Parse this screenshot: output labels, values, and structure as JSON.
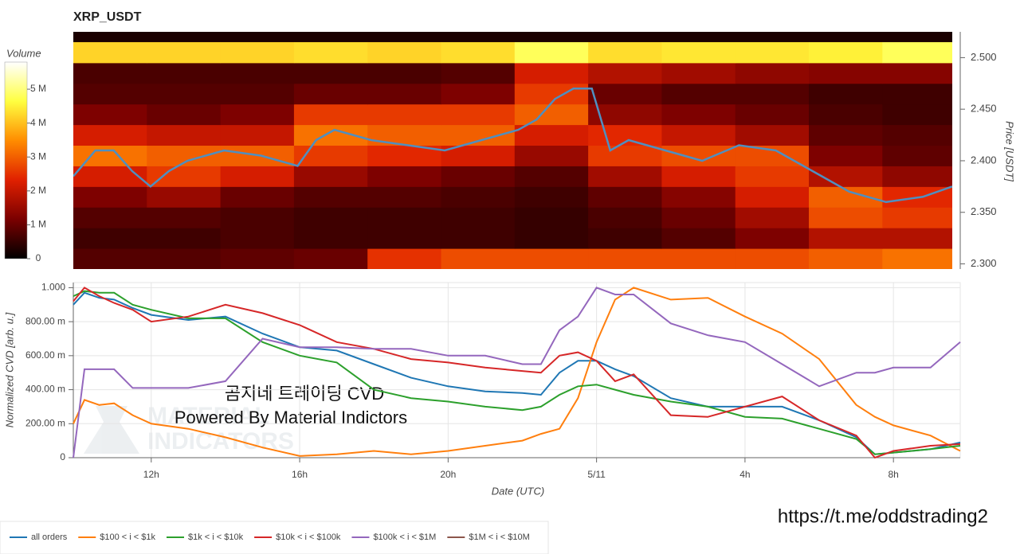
{
  "chart_data": [
    {
      "type": "heatmap",
      "title": "XRP_USDT",
      "colorbar_title": "Volume",
      "ylabel": "Price [USDT]",
      "xlim": [
        9.9,
        33.8
      ],
      "ylim": [
        2.295,
        2.525
      ],
      "yticks": [
        {
          "value": 2.3,
          "label": "2.300"
        },
        {
          "value": 2.35,
          "label": "2.350"
        },
        {
          "value": 2.4,
          "label": "2.400"
        },
        {
          "value": 2.45,
          "label": "2.450"
        },
        {
          "value": 2.5,
          "label": "2.500"
        }
      ],
      "zlim": [
        0,
        5800000
      ],
      "zticks": [
        0,
        {
          "value": 1000000,
          "label": "1 M"
        },
        {
          "value": 2000000,
          "label": "2 M"
        },
        {
          "value": 3000000,
          "label": "3 M"
        },
        {
          "value": 4000000,
          "label": "4 M"
        },
        {
          "value": 5000000,
          "label": "5 M"
        }
      ],
      "colorscale": [
        "#000000",
        "#7a0000",
        "#e02000",
        "#ff8c00",
        "#ffff40",
        "#ffffff"
      ],
      "time_bins": [
        9.9,
        11.9,
        13.9,
        15.9,
        17.9,
        19.9,
        21.9,
        23.9,
        25.9,
        27.9,
        29.9,
        31.9,
        33.8
      ],
      "price_bins": [
        2.295,
        2.315,
        2.335,
        2.355,
        2.375,
        2.395,
        2.415,
        2.435,
        2.455,
        2.475,
        2.495,
        2.515
      ],
      "z": [
        [
          800000,
          800000,
          900000,
          1000000,
          2500000,
          2800000,
          2800000,
          2800000,
          2800000,
          2800000,
          3000000,
          3200000
        ],
        [
          600000,
          600000,
          700000,
          600000,
          600000,
          600000,
          500000,
          600000,
          800000,
          1200000,
          1800000,
          1800000
        ],
        [
          800000,
          800000,
          700000,
          600000,
          600000,
          600000,
          500000,
          700000,
          1000000,
          1600000,
          2800000,
          2600000
        ],
        [
          1200000,
          1500000,
          1000000,
          800000,
          800000,
          700000,
          600000,
          900000,
          1300000,
          2200000,
          3000000,
          2400000
        ],
        [
          2200000,
          2600000,
          2200000,
          1500000,
          1200000,
          1000000,
          800000,
          1600000,
          2200000,
          2600000,
          1800000,
          1400000
        ],
        [
          3200000,
          3000000,
          3000000,
          2600000,
          2400000,
          2200000,
          1500000,
          2600000,
          2800000,
          2800000,
          1200000,
          900000
        ],
        [
          2200000,
          2000000,
          2000000,
          3200000,
          3000000,
          3000000,
          2200000,
          2400000,
          2000000,
          1600000,
          900000,
          800000
        ],
        [
          1200000,
          1000000,
          1200000,
          2600000,
          2600000,
          2600000,
          3000000,
          1400000,
          1200000,
          1000000,
          700000,
          600000
        ],
        [
          800000,
          800000,
          800000,
          1000000,
          1000000,
          1200000,
          2600000,
          1000000,
          800000,
          800000,
          600000,
          600000
        ],
        [
          700000,
          700000,
          700000,
          700000,
          700000,
          800000,
          2200000,
          1800000,
          1600000,
          1400000,
          1300000,
          1300000
        ],
        [
          4200000,
          4200000,
          4200000,
          4300000,
          4200000,
          4300000,
          4800000,
          4300000,
          4400000,
          4400000,
          4500000,
          4800000
        ]
      ],
      "line": {
        "color": "#4f8fc0",
        "x": [
          9.9,
          10.5,
          11,
          11.5,
          12,
          12.5,
          13,
          14,
          15,
          16,
          16.5,
          17,
          18,
          19,
          20,
          21,
          22,
          22.5,
          23,
          23.5,
          24,
          24.5,
          25,
          26,
          27,
          28,
          29,
          30,
          31,
          32,
          33,
          33.8
        ],
        "values": [
          2.385,
          2.41,
          2.41,
          2.39,
          2.375,
          2.39,
          2.4,
          2.41,
          2.405,
          2.395,
          2.42,
          2.43,
          2.42,
          2.415,
          2.41,
          2.42,
          2.43,
          2.44,
          2.46,
          2.47,
          2.47,
          2.41,
          2.42,
          2.41,
          2.4,
          2.415,
          2.41,
          2.39,
          2.37,
          2.36,
          2.365,
          2.375
        ]
      }
    },
    {
      "type": "line",
      "ylabel": "Normalized CVD [arb. u.]",
      "xlabel": "Date (UTC)",
      "xlim": [
        9.9,
        33.8
      ],
      "ylim": [
        0,
        1.03
      ],
      "xticks": [
        {
          "value": 12,
          "label": "12h"
        },
        {
          "value": 16,
          "label": "16h"
        },
        {
          "value": 20,
          "label": "20h"
        },
        {
          "value": 24,
          "label": "5/11"
        },
        {
          "value": 28,
          "label": "4h"
        },
        {
          "value": 32,
          "label": "8h"
        }
      ],
      "yticks": [
        0,
        {
          "value": 0.2,
          "label": "200.00 m"
        },
        {
          "value": 0.4,
          "label": "400.00 m"
        },
        {
          "value": 0.6,
          "label": "600.00 m"
        },
        {
          "value": 0.8,
          "label": "800.00 m"
        },
        {
          "value": 1,
          "label": "1.000"
        }
      ],
      "grid": true,
      "x": [
        9.9,
        10.2,
        10.6,
        11,
        11.5,
        12,
        13,
        14,
        15,
        16,
        17,
        18,
        19,
        20,
        21,
        22,
        22.5,
        23,
        23.5,
        24,
        24.5,
        25,
        26,
        27,
        28,
        29,
        30,
        31,
        31.5,
        32,
        33,
        33.8
      ],
      "series": [
        {
          "name": "all orders",
          "color": "#1f77b4",
          "values": [
            0.9,
            0.97,
            0.94,
            0.93,
            0.88,
            0.84,
            0.81,
            0.83,
            0.73,
            0.65,
            0.63,
            0.55,
            0.47,
            0.42,
            0.39,
            0.38,
            0.37,
            0.5,
            0.57,
            0.57,
            0.52,
            0.48,
            0.35,
            0.3,
            0.3,
            0.3,
            0.22,
            0.12,
            0.02,
            0.03,
            0.05,
            0.09
          ]
        },
        {
          "name": "$100 < i < $1k",
          "color": "#ff7f0e",
          "values": [
            0.2,
            0.34,
            0.31,
            0.32,
            0.25,
            0.2,
            0.17,
            0.12,
            0.06,
            0.01,
            0.02,
            0.04,
            0.02,
            0.04,
            0.07,
            0.1,
            0.14,
            0.17,
            0.35,
            0.68,
            0.93,
            1.0,
            0.93,
            0.94,
            0.83,
            0.73,
            0.58,
            0.31,
            0.24,
            0.19,
            0.13,
            0.04
          ]
        },
        {
          "name": "$1k < i < $10k",
          "color": "#2ca02c",
          "values": [
            0.95,
            0.98,
            0.97,
            0.97,
            0.9,
            0.87,
            0.82,
            0.82,
            0.68,
            0.6,
            0.56,
            0.4,
            0.35,
            0.33,
            0.3,
            0.28,
            0.3,
            0.37,
            0.42,
            0.43,
            0.4,
            0.37,
            0.33,
            0.3,
            0.24,
            0.23,
            0.17,
            0.11,
            0.02,
            0.03,
            0.05,
            0.07
          ]
        },
        {
          "name": "$10k < i < $100k",
          "color": "#d62728",
          "values": [
            0.92,
            1.0,
            0.95,
            0.91,
            0.87,
            0.8,
            0.83,
            0.9,
            0.85,
            0.78,
            0.68,
            0.64,
            0.58,
            0.56,
            0.53,
            0.51,
            0.5,
            0.6,
            0.62,
            0.57,
            0.45,
            0.49,
            0.25,
            0.24,
            0.3,
            0.36,
            0.22,
            0.13,
            0.0,
            0.04,
            0.07,
            0.08
          ]
        },
        {
          "name": "$100k < i < $1M",
          "color": "#9467bd",
          "values": [
            0.0,
            0.52,
            0.52,
            0.52,
            0.41,
            0.41,
            0.41,
            0.45,
            0.7,
            0.65,
            0.65,
            0.64,
            0.64,
            0.6,
            0.6,
            0.55,
            0.55,
            0.75,
            0.83,
            1.0,
            0.96,
            0.96,
            0.79,
            0.72,
            0.68,
            0.55,
            0.42,
            0.5,
            0.5,
            0.53,
            0.53,
            0.68
          ]
        },
        {
          "name": "$1M < i < $10M",
          "color": "#8c564b",
          "values": [
            null,
            null,
            null,
            null,
            null,
            null,
            null,
            null,
            null,
            null,
            null,
            null,
            null,
            null,
            null,
            null,
            null,
            null,
            null,
            null,
            null,
            null,
            null,
            null,
            null,
            null,
            null,
            null,
            null,
            null,
            null,
            null
          ]
        }
      ]
    }
  ],
  "annotations": {
    "watermark_title": "곰지네 트레이딩 CVD",
    "watermark_sub": "Powered By Material Indictors",
    "logo_top": "MATERIAL",
    "logo_bottom": "INDICATORS",
    "link": "https://t.me/oddstrading2"
  }
}
